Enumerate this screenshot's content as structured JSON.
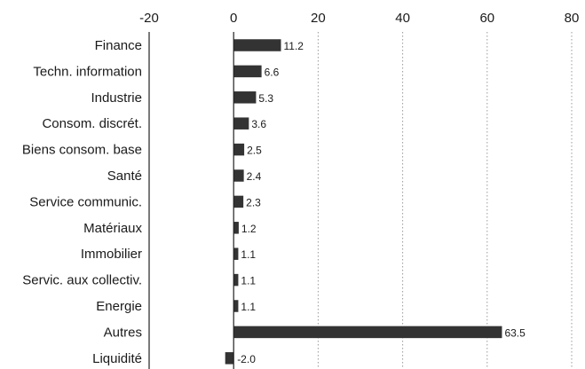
{
  "chart_data": {
    "type": "bar",
    "orientation": "horizontal",
    "title": "",
    "xlabel": "",
    "ylabel": "",
    "xlim": [
      -20,
      80
    ],
    "ticks": [
      -20,
      0,
      20,
      40,
      60,
      80
    ],
    "grid": true,
    "bar_color": "#333333",
    "categories": [
      "Finance",
      "Techn. information",
      "Industrie",
      "Consom. discrét.",
      "Biens consom. base",
      "Santé",
      "Service communic.",
      "Matériaux",
      "Immobilier",
      "Servic. aux collectiv.",
      "Energie",
      "Autres",
      "Liquidité"
    ],
    "values": [
      11.2,
      6.6,
      5.3,
      3.6,
      2.5,
      2.4,
      2.3,
      1.2,
      1.1,
      1.1,
      1.1,
      63.5,
      -2.0
    ],
    "value_labels": [
      "11.2",
      "6.6",
      "5.3",
      "3.6",
      "2.5",
      "2.4",
      "2.3",
      "1.2",
      "1.1",
      "1.1",
      "1.1",
      "63.5",
      "-2.0"
    ]
  }
}
